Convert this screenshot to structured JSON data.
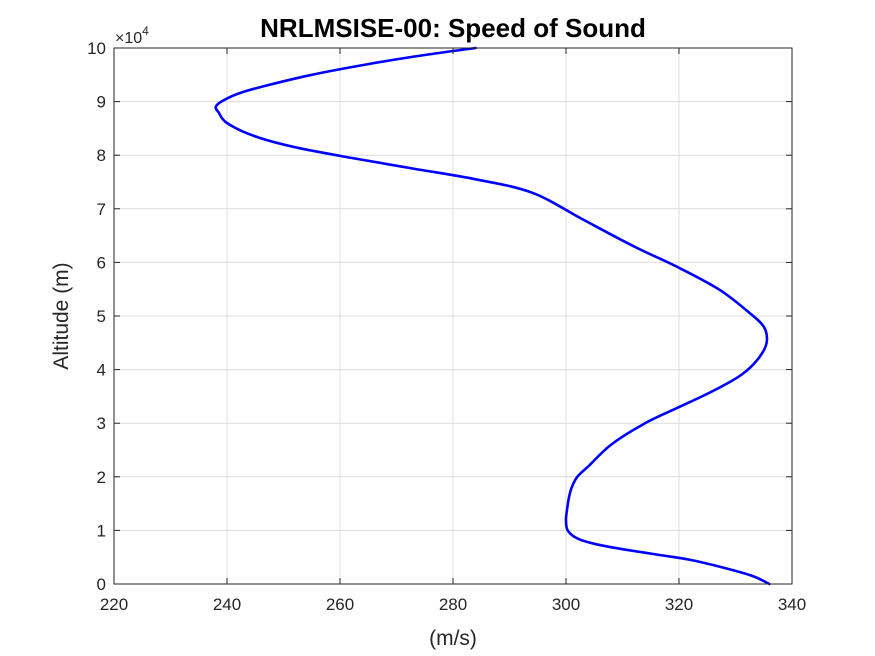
{
  "chart_data": {
    "type": "line",
    "title": "NRLMSISE-00: Speed of Sound",
    "xlabel": "(m/s)",
    "ylabel": "Altitude (m)",
    "xlim": [
      220,
      340
    ],
    "ylim": [
      0,
      100000
    ],
    "x_ticks": [
      220,
      240,
      260,
      280,
      300,
      320,
      340
    ],
    "y_ticks": [
      0,
      1,
      2,
      3,
      4,
      5,
      6,
      7,
      8,
      9,
      10
    ],
    "y_exponent_label": "×10",
    "y_exponent_power": "4",
    "grid": true,
    "colors": {
      "line": "#0000ff",
      "axis": "#262626",
      "grid": "#dcdcdc"
    },
    "series": [
      {
        "x": [
          336,
          333,
          328,
          322,
          316,
          310,
          305,
          302,
          300.3,
          300,
          300.2,
          300.5,
          301,
          302,
          304,
          308,
          314,
          320,
          326,
          331,
          334,
          335.5,
          335,
          332,
          327,
          320,
          312,
          303,
          294,
          284,
          273,
          262,
          252,
          245,
          240,
          238.5,
          238,
          239,
          242,
          247,
          255,
          265,
          275,
          284
        ],
        "y": [
          0,
          1500,
          3000,
          4500,
          5500,
          6500,
          7500,
          8500,
          10000,
          12000,
          14000,
          16000,
          18000,
          20000,
          22000,
          26000,
          30000,
          33000,
          36000,
          39000,
          42000,
          45000,
          48000,
          51000,
          55000,
          59000,
          63000,
          68000,
          73000,
          75500,
          77500,
          79500,
          81500,
          83500,
          86000,
          88000,
          89000,
          90000,
          91500,
          93000,
          95000,
          97000,
          98700,
          100000
        ]
      }
    ]
  }
}
